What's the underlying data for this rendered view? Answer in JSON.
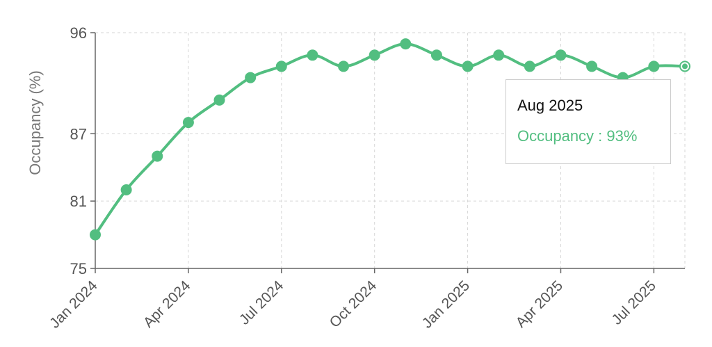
{
  "chart_data": {
    "type": "line",
    "ylabel": "Occupancy (%)",
    "xlabel": "",
    "ylim": [
      75,
      96
    ],
    "yticks": [
      75,
      81,
      87,
      96
    ],
    "xticks": [
      "Jan 2024",
      "Apr 2024",
      "Jul 2024",
      "Oct 2024",
      "Jan 2025",
      "Apr 2025",
      "Jul 2025"
    ],
    "grid": true,
    "color": "#52BE80",
    "x": [
      "Jan 2024",
      "Feb 2024",
      "Mar 2024",
      "Apr 2024",
      "May 2024",
      "Jun 2024",
      "Jul 2024",
      "Aug 2024",
      "Sep 2024",
      "Oct 2024",
      "Nov 2024",
      "Dec 2024",
      "Jan 2025",
      "Feb 2025",
      "Mar 2025",
      "Apr 2025",
      "May 2025",
      "Jun 2025",
      "Jul 2025",
      "Aug 2025"
    ],
    "series": [
      {
        "name": "Occupancy",
        "values": [
          78,
          82,
          85,
          88,
          90,
          92,
          93,
          94,
          93,
          94,
          95,
          94,
          93,
          94,
          93,
          94,
          93,
          92,
          93,
          93
        ]
      }
    ],
    "active_index": 19
  },
  "tooltip": {
    "title": "Aug 2025",
    "series_label": "Occupancy",
    "separator": " : ",
    "value": "93%"
  }
}
